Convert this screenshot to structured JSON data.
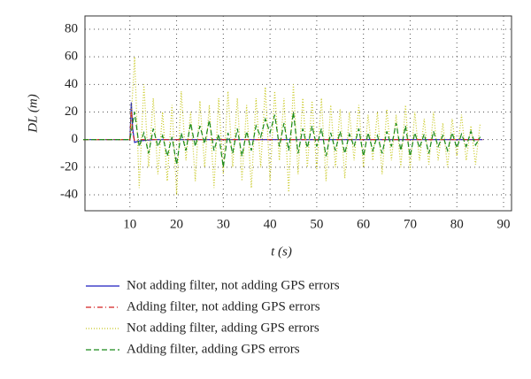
{
  "chart_data": {
    "type": "line",
    "xlabel": "t (s)",
    "ylabel": "DL (m)",
    "xlim": [
      0,
      90
    ],
    "xticks": [
      10,
      20,
      30,
      40,
      50,
      60,
      70,
      80,
      90
    ],
    "ylim": [
      -50,
      90
    ],
    "yticks": [
      -40,
      -20,
      0,
      20,
      40,
      60,
      80
    ],
    "grid": true,
    "series": [
      {
        "name": "Not adding filter, not adding GPS errors",
        "color": "#1f1fbf",
        "dash": "solid",
        "x": [
          0,
          10,
          10.3,
          10.6,
          11,
          12,
          15,
          85.5
        ],
        "values": [
          0,
          0,
          27,
          8,
          -2,
          -1,
          0,
          0
        ]
      },
      {
        "name": "Adding filter, not adding GPS errors",
        "color": "#d42020",
        "dash": "dashdot",
        "x": [
          0,
          10,
          10.3,
          10.6,
          11,
          12,
          85.5
        ],
        "values": [
          0,
          0,
          22,
          5,
          -1,
          0,
          0
        ]
      },
      {
        "name": "Not adding filter, adding GPS errors",
        "color": "#c8c820",
        "dash": "dotted",
        "x": [
          0,
          10,
          11,
          12,
          13,
          14,
          15,
          16,
          17,
          18,
          19,
          20,
          21,
          22,
          23,
          24,
          25,
          26,
          27,
          28,
          29,
          30,
          31,
          32,
          33,
          34,
          35,
          36,
          37,
          38,
          39,
          40,
          41,
          42,
          43,
          44,
          45,
          46,
          47,
          48,
          49,
          50,
          51,
          52,
          53,
          54,
          55,
          56,
          57,
          58,
          59,
          60,
          61,
          62,
          63,
          64,
          65,
          66,
          67,
          68,
          69,
          70,
          71,
          72,
          73,
          74,
          75,
          76,
          77,
          78,
          79,
          80,
          81,
          82,
          83,
          84,
          85
        ],
        "values": [
          0,
          0,
          60,
          -35,
          40,
          -20,
          30,
          -25,
          20,
          -30,
          25,
          -40,
          35,
          -15,
          20,
          -30,
          28,
          -20,
          25,
          -35,
          30,
          -25,
          35,
          -20,
          30,
          -30,
          25,
          -35,
          30,
          -20,
          38,
          -30,
          35,
          -15,
          30,
          -38,
          40,
          -25,
          30,
          -20,
          28,
          -22,
          30,
          -30,
          25,
          -20,
          22,
          -28,
          20,
          -15,
          25,
          -20,
          18,
          -15,
          20,
          -25,
          22,
          -15,
          18,
          -20,
          25,
          -22,
          20,
          -15,
          15,
          -18,
          20,
          -15,
          12,
          -20,
          15,
          -12,
          18,
          -15,
          10,
          -18,
          12
        ]
      },
      {
        "name": "Adding filter, adding GPS errors",
        "color": "#1a8a1a",
        "dash": "dashed",
        "x": [
          0,
          10,
          11,
          12,
          13,
          14,
          15,
          16,
          17,
          18,
          19,
          20,
          21,
          22,
          23,
          24,
          25,
          26,
          27,
          28,
          29,
          30,
          31,
          32,
          33,
          34,
          35,
          36,
          37,
          38,
          39,
          40,
          41,
          42,
          43,
          44,
          45,
          46,
          47,
          48,
          49,
          50,
          51,
          52,
          53,
          54,
          55,
          56,
          57,
          58,
          59,
          60,
          61,
          62,
          63,
          64,
          65,
          66,
          67,
          68,
          69,
          70,
          71,
          72,
          73,
          74,
          75,
          76,
          77,
          78,
          79,
          80,
          81,
          82,
          83,
          84,
          85
        ],
        "values": [
          0,
          0,
          20,
          -5,
          5,
          -10,
          8,
          -5,
          3,
          -12,
          2,
          -18,
          5,
          -8,
          12,
          -5,
          10,
          -3,
          14,
          -8,
          4,
          -20,
          5,
          -10,
          8,
          -12,
          6,
          -8,
          10,
          2,
          15,
          5,
          18,
          -5,
          12,
          -8,
          20,
          -10,
          8,
          -6,
          10,
          -5,
          8,
          -12,
          5,
          -8,
          6,
          -10,
          4,
          -5,
          8,
          -12,
          5,
          -8,
          3,
          -10,
          6,
          -5,
          12,
          -8,
          10,
          -12,
          5,
          -6,
          4,
          -10,
          6,
          -5,
          3,
          -8,
          5,
          -6,
          4,
          -5,
          6,
          -4,
          2
        ]
      }
    ]
  }
}
